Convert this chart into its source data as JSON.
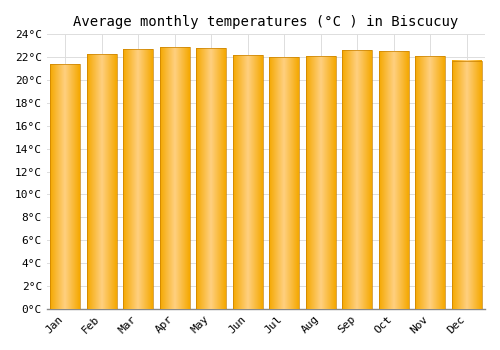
{
  "title": "Average monthly temperatures (°C ) in Biscucuy",
  "months": [
    "Jan",
    "Feb",
    "Mar",
    "Apr",
    "May",
    "Jun",
    "Jul",
    "Aug",
    "Sep",
    "Oct",
    "Nov",
    "Dec"
  ],
  "values": [
    21.4,
    22.3,
    22.7,
    22.9,
    22.8,
    22.2,
    22.0,
    22.1,
    22.6,
    22.5,
    22.1,
    21.7
  ],
  "bar_color_center": "#FFD080",
  "bar_color_edge": "#F5A800",
  "background_color": "#FFFFFF",
  "grid_color": "#DDDDDD",
  "ylim": [
    0,
    24
  ],
  "ytick_step": 2,
  "title_fontsize": 10,
  "tick_fontsize": 8,
  "font_family": "monospace",
  "bar_width": 0.82
}
